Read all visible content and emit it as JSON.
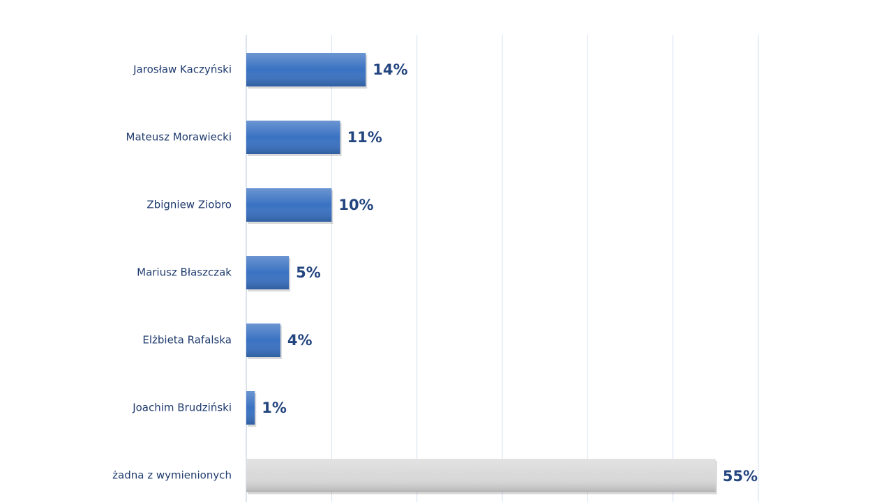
{
  "chart_data": {
    "type": "bar",
    "orientation": "horizontal",
    "categories": [
      "Jarosław Kaczyński",
      "Mateusz Morawiecki",
      "Zbigniew Ziobro",
      "Mariusz Błaszczak",
      "Elżbieta Rafalska",
      "Joachim Brudziński",
      "żadna z wymienionych"
    ],
    "values": [
      14,
      11,
      10,
      5,
      4,
      1,
      55
    ],
    "value_labels": [
      "14%",
      "11%",
      "10%",
      "5%",
      "4%",
      "1%",
      "55%"
    ],
    "colors": [
      "#3a72c2",
      "#3a72c2",
      "#3a72c2",
      "#3a72c2",
      "#3a72c2",
      "#3a72c2",
      "#d9d9d9"
    ],
    "xlim": [
      0,
      60
    ],
    "xticks": [
      0,
      10,
      20,
      30,
      40,
      50,
      60
    ],
    "grid": true
  }
}
